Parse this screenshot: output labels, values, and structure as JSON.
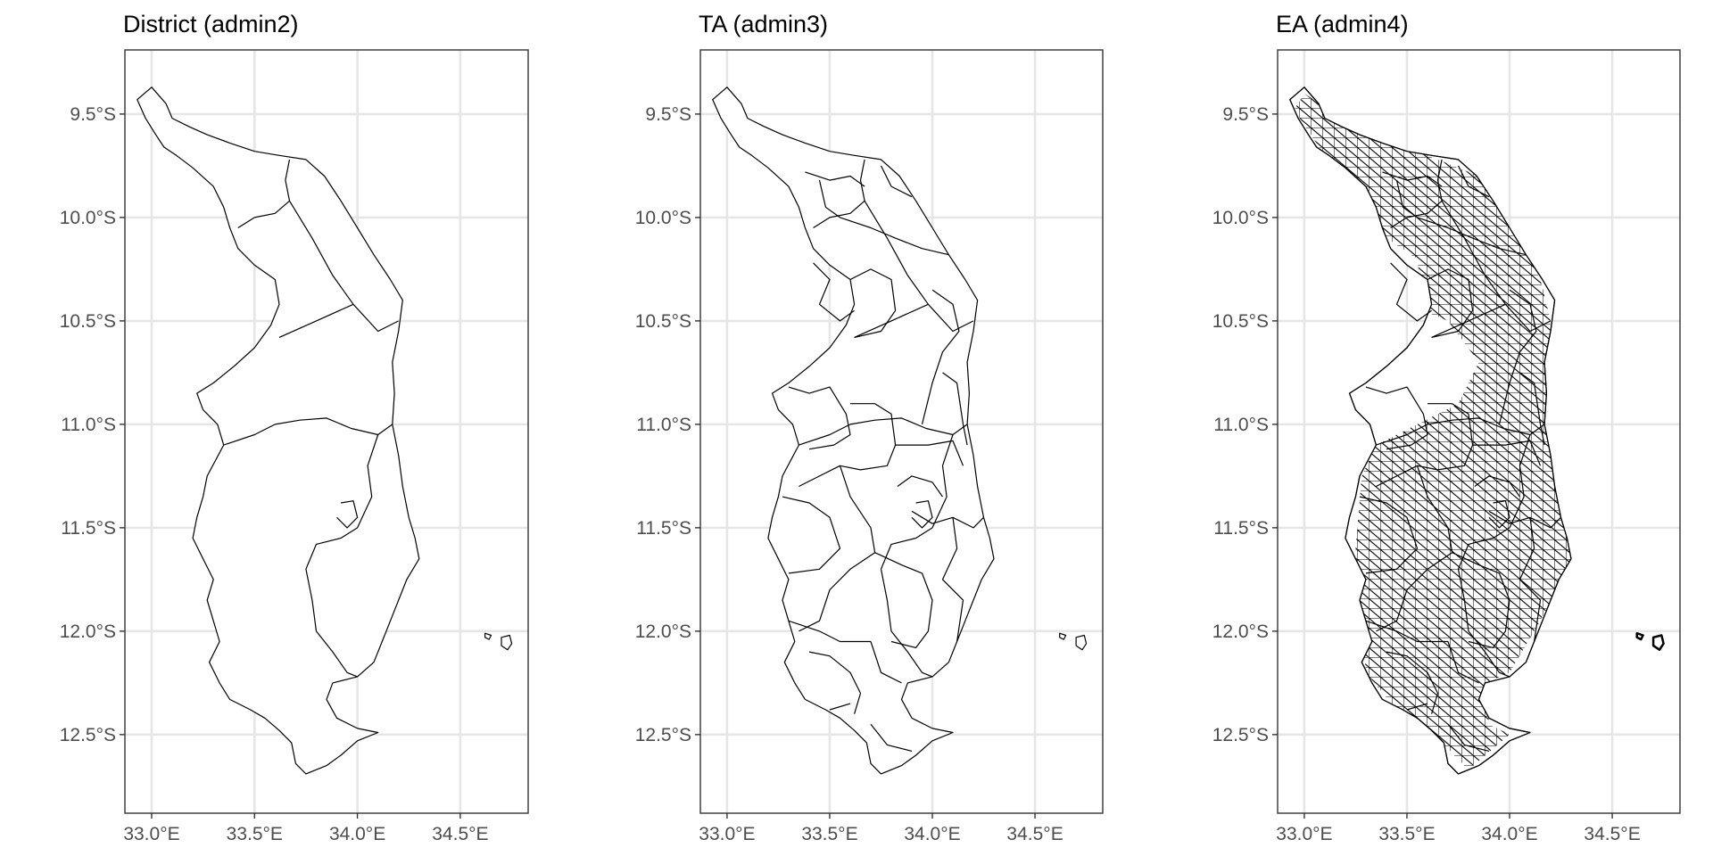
{
  "chart_data": {
    "type": "map",
    "grid": true,
    "xlim": [
      32.87,
      34.83
    ],
    "ylim": [
      -12.88,
      -9.19
    ],
    "x_ticks": [
      33.0,
      33.5,
      34.0,
      34.5
    ],
    "x_tick_labels": [
      "33.0°E",
      "33.5°E",
      "34.0°E",
      "34.5°E"
    ],
    "y_ticks": [
      -9.5,
      -10.0,
      -10.5,
      -11.0,
      -11.5,
      -12.0,
      -12.5
    ],
    "y_tick_labels": [
      "9.5°S",
      "10.0°S",
      "10.5°S",
      "11.0°S",
      "11.5°S",
      "12.0°S",
      "12.5°S"
    ],
    "panels": [
      {
        "title": "District (admin2)",
        "level": "admin2"
      },
      {
        "title": "TA (admin3)",
        "level": "admin3"
      },
      {
        "title": "EA (admin4)",
        "level": "admin4"
      }
    ],
    "outline": [
      [
        33.0,
        -9.37
      ],
      [
        33.07,
        -9.45
      ],
      [
        33.1,
        -9.52
      ],
      [
        33.18,
        -9.56
      ],
      [
        33.27,
        -9.6
      ],
      [
        33.38,
        -9.64
      ],
      [
        33.5,
        -9.68
      ],
      [
        33.62,
        -9.7
      ],
      [
        33.75,
        -9.72
      ],
      [
        33.84,
        -9.8
      ],
      [
        33.92,
        -9.92
      ],
      [
        34.0,
        -10.05
      ],
      [
        34.08,
        -10.18
      ],
      [
        34.16,
        -10.3
      ],
      [
        34.22,
        -10.4
      ],
      [
        34.2,
        -10.55
      ],
      [
        34.17,
        -10.7
      ],
      [
        34.18,
        -10.85
      ],
      [
        34.17,
        -11.0
      ],
      [
        34.2,
        -11.15
      ],
      [
        34.22,
        -11.3
      ],
      [
        34.25,
        -11.45
      ],
      [
        34.28,
        -11.55
      ],
      [
        34.3,
        -11.65
      ],
      [
        34.24,
        -11.75
      ],
      [
        34.2,
        -11.85
      ],
      [
        34.16,
        -11.95
      ],
      [
        34.12,
        -12.05
      ],
      [
        34.08,
        -12.15
      ],
      [
        34.0,
        -12.22
      ],
      [
        33.88,
        -12.25
      ],
      [
        33.85,
        -12.33
      ],
      [
        33.9,
        -12.42
      ],
      [
        34.0,
        -12.47
      ],
      [
        34.1,
        -12.49
      ],
      [
        34.0,
        -12.53
      ],
      [
        33.92,
        -12.6
      ],
      [
        33.85,
        -12.65
      ],
      [
        33.75,
        -12.69
      ],
      [
        33.7,
        -12.64
      ],
      [
        33.68,
        -12.54
      ],
      [
        33.62,
        -12.48
      ],
      [
        33.55,
        -12.42
      ],
      [
        33.48,
        -12.38
      ],
      [
        33.38,
        -12.33
      ],
      [
        33.33,
        -12.25
      ],
      [
        33.28,
        -12.15
      ],
      [
        33.33,
        -12.05
      ],
      [
        33.3,
        -11.95
      ],
      [
        33.27,
        -11.85
      ],
      [
        33.3,
        -11.75
      ],
      [
        33.25,
        -11.65
      ],
      [
        33.2,
        -11.55
      ],
      [
        33.22,
        -11.45
      ],
      [
        33.25,
        -11.35
      ],
      [
        33.27,
        -11.25
      ],
      [
        33.35,
        -11.1
      ],
      [
        33.32,
        -11.0
      ],
      [
        33.25,
        -10.93
      ],
      [
        33.22,
        -10.85
      ],
      [
        33.3,
        -10.8
      ],
      [
        33.4,
        -10.72
      ],
      [
        33.5,
        -10.63
      ],
      [
        33.58,
        -10.52
      ],
      [
        33.62,
        -10.42
      ],
      [
        33.6,
        -10.3
      ],
      [
        33.5,
        -10.23
      ],
      [
        33.42,
        -10.15
      ],
      [
        33.38,
        -10.05
      ],
      [
        33.35,
        -9.95
      ],
      [
        33.3,
        -9.85
      ],
      [
        33.2,
        -9.76
      ],
      [
        33.12,
        -9.7
      ],
      [
        33.06,
        -9.66
      ],
      [
        33.02,
        -9.6
      ],
      [
        32.97,
        -9.52
      ],
      [
        32.93,
        -9.43
      ]
    ],
    "islands": [
      [
        [
          34.62,
          -12.01
        ],
        [
          34.65,
          -12.02
        ],
        [
          34.64,
          -12.04
        ],
        [
          34.62,
          -12.03
        ]
      ],
      [
        [
          34.7,
          -12.03
        ],
        [
          34.74,
          -12.02
        ],
        [
          34.75,
          -12.06
        ],
        [
          34.73,
          -12.09
        ],
        [
          34.7,
          -12.07
        ]
      ]
    ],
    "district_boundaries": [
      [
        [
          33.67,
          -9.72
        ],
        [
          33.65,
          -9.82
        ],
        [
          33.67,
          -9.92
        ],
        [
          33.6,
          -9.98
        ],
        [
          33.5,
          -10.0
        ],
        [
          33.42,
          -10.05
        ]
      ],
      [
        [
          33.67,
          -9.92
        ],
        [
          33.78,
          -10.1
        ],
        [
          33.88,
          -10.28
        ],
        [
          33.98,
          -10.42
        ],
        [
          34.1,
          -10.55
        ],
        [
          34.2,
          -10.5
        ]
      ],
      [
        [
          33.98,
          -10.42
        ],
        [
          33.8,
          -10.5
        ],
        [
          33.62,
          -10.58
        ]
      ],
      [
        [
          33.35,
          -11.1
        ],
        [
          33.5,
          -11.05
        ],
        [
          33.6,
          -11.0
        ],
        [
          33.72,
          -10.98
        ],
        [
          33.85,
          -10.97
        ],
        [
          33.97,
          -11.02
        ],
        [
          34.1,
          -11.05
        ],
        [
          34.17,
          -11.0
        ]
      ],
      [
        [
          34.1,
          -11.05
        ],
        [
          34.05,
          -11.2
        ],
        [
          34.07,
          -11.35
        ],
        [
          34.0,
          -11.5
        ],
        [
          33.92,
          -11.55
        ],
        [
          33.8,
          -11.58
        ],
        [
          33.75,
          -11.7
        ],
        [
          33.78,
          -11.85
        ],
        [
          33.8,
          -12.0
        ],
        [
          33.88,
          -12.1
        ],
        [
          33.95,
          -12.2
        ],
        [
          34.0,
          -12.22
        ]
      ],
      [
        [
          33.92,
          -11.38
        ],
        [
          33.98,
          -11.37
        ],
        [
          34.0,
          -11.45
        ],
        [
          33.95,
          -11.5
        ],
        [
          33.9,
          -11.45
        ]
      ]
    ],
    "ta_boundaries": [
      [
        [
          33.38,
          -9.78
        ],
        [
          33.5,
          -9.82
        ],
        [
          33.6,
          -9.8
        ],
        [
          33.67,
          -9.85
        ]
      ],
      [
        [
          33.45,
          -9.82
        ],
        [
          33.48,
          -9.95
        ],
        [
          33.55,
          -10.0
        ]
      ],
      [
        [
          33.75,
          -9.75
        ],
        [
          33.8,
          -9.85
        ],
        [
          33.9,
          -9.9
        ]
      ],
      [
        [
          33.55,
          -10.0
        ],
        [
          33.7,
          -10.05
        ],
        [
          33.82,
          -10.1
        ],
        [
          33.95,
          -10.15
        ],
        [
          34.08,
          -10.18
        ]
      ],
      [
        [
          33.6,
          -10.3
        ],
        [
          33.7,
          -10.25
        ],
        [
          33.8,
          -10.3
        ],
        [
          33.82,
          -10.45
        ],
        [
          33.75,
          -10.55
        ],
        [
          33.62,
          -10.58
        ]
      ],
      [
        [
          33.42,
          -10.22
        ],
        [
          33.5,
          -10.3
        ],
        [
          33.45,
          -10.42
        ],
        [
          33.55,
          -10.5
        ],
        [
          33.62,
          -10.45
        ]
      ],
      [
        [
          34.0,
          -10.35
        ],
        [
          34.1,
          -10.42
        ],
        [
          34.13,
          -10.55
        ],
        [
          34.05,
          -10.65
        ],
        [
          34.0,
          -10.8
        ],
        [
          33.95,
          -11.0
        ]
      ],
      [
        [
          33.3,
          -10.82
        ],
        [
          33.4,
          -10.85
        ],
        [
          33.5,
          -10.82
        ],
        [
          33.58,
          -10.95
        ],
        [
          33.6,
          -11.05
        ],
        [
          33.52,
          -11.1
        ],
        [
          33.4,
          -11.12
        ]
      ],
      [
        [
          33.6,
          -10.9
        ],
        [
          33.72,
          -10.9
        ],
        [
          33.8,
          -10.95
        ],
        [
          33.82,
          -11.1
        ],
        [
          33.78,
          -11.2
        ],
        [
          33.65,
          -11.22
        ],
        [
          33.55,
          -11.2
        ],
        [
          33.45,
          -11.25
        ],
        [
          33.35,
          -11.3
        ]
      ],
      [
        [
          33.82,
          -11.1
        ],
        [
          33.98,
          -11.1
        ],
        [
          34.1,
          -11.08
        ],
        [
          34.15,
          -11.2
        ]
      ],
      [
        [
          34.05,
          -10.75
        ],
        [
          34.12,
          -10.8
        ],
        [
          34.15,
          -11.0
        ],
        [
          34.17,
          -11.1
        ]
      ],
      [
        [
          33.27,
          -11.35
        ],
        [
          33.4,
          -11.38
        ],
        [
          33.5,
          -11.45
        ],
        [
          33.55,
          -11.6
        ],
        [
          33.45,
          -11.7
        ],
        [
          33.3,
          -11.72
        ]
      ],
      [
        [
          33.55,
          -11.2
        ],
        [
          33.6,
          -11.35
        ],
        [
          33.7,
          -11.5
        ],
        [
          33.72,
          -11.62
        ],
        [
          33.6,
          -11.7
        ],
        [
          33.5,
          -11.8
        ],
        [
          33.45,
          -11.95
        ],
        [
          33.35,
          -12.0
        ]
      ],
      [
        [
          33.72,
          -11.62
        ],
        [
          33.85,
          -11.68
        ],
        [
          33.95,
          -11.72
        ],
        [
          34.0,
          -11.85
        ],
        [
          33.98,
          -12.0
        ],
        [
          33.92,
          -12.08
        ],
        [
          33.8,
          -12.05
        ]
      ],
      [
        [
          33.9,
          -11.42
        ],
        [
          34.0,
          -11.48
        ],
        [
          34.1,
          -11.45
        ],
        [
          34.2,
          -11.5
        ],
        [
          34.25,
          -11.45
        ]
      ],
      [
        [
          34.1,
          -11.45
        ],
        [
          34.12,
          -11.6
        ],
        [
          34.05,
          -11.75
        ],
        [
          34.15,
          -11.85
        ],
        [
          34.12,
          -12.05
        ]
      ],
      [
        [
          33.4,
          -12.1
        ],
        [
          33.5,
          -12.12
        ],
        [
          33.6,
          -12.2
        ],
        [
          33.65,
          -12.3
        ],
        [
          33.62,
          -12.4
        ]
      ],
      [
        [
          33.7,
          -12.05
        ],
        [
          33.75,
          -12.2
        ],
        [
          33.85,
          -12.25
        ]
      ],
      [
        [
          33.7,
          -12.45
        ],
        [
          33.78,
          -12.55
        ],
        [
          33.9,
          -12.58
        ]
      ],
      [
        [
          33.6,
          -12.35
        ],
        [
          33.5,
          -12.38
        ]
      ],
      [
        [
          33.3,
          -11.95
        ],
        [
          33.45,
          -12.0
        ],
        [
          33.55,
          -12.05
        ],
        [
          33.7,
          -12.05
        ]
      ],
      [
        [
          33.83,
          -11.3
        ],
        [
          33.9,
          -11.25
        ],
        [
          34.0,
          -11.28
        ],
        [
          34.05,
          -11.35
        ]
      ]
    ],
    "ea_dense_regions": [
      [
        [
          33.0,
          -9.4
        ],
        [
          33.3,
          -9.6
        ],
        [
          33.6,
          -9.7
        ],
        [
          33.85,
          -9.8
        ],
        [
          34.0,
          -10.0
        ],
        [
          34.15,
          -10.3
        ],
        [
          34.2,
          -10.5
        ],
        [
          34.17,
          -11.0
        ],
        [
          34.25,
          -11.4
        ],
        [
          34.3,
          -11.65
        ],
        [
          34.15,
          -11.95
        ],
        [
          34.0,
          -12.2
        ],
        [
          33.88,
          -12.25
        ],
        [
          33.9,
          -12.45
        ],
        [
          34.0,
          -12.5
        ],
        [
          33.8,
          -12.67
        ],
        [
          33.68,
          -12.55
        ],
        [
          33.45,
          -12.38
        ],
        [
          33.3,
          -12.2
        ],
        [
          33.25,
          -11.6
        ],
        [
          33.28,
          -11.25
        ],
        [
          33.35,
          -11.1
        ],
        [
          33.55,
          -11.0
        ],
        [
          33.75,
          -10.9
        ],
        [
          33.85,
          -10.7
        ],
        [
          33.7,
          -10.5
        ],
        [
          33.58,
          -10.45
        ],
        [
          33.55,
          -10.2
        ],
        [
          33.4,
          -10.1
        ],
        [
          33.3,
          -9.85
        ],
        [
          33.1,
          -9.7
        ],
        [
          32.95,
          -9.48
        ]
      ]
    ]
  }
}
